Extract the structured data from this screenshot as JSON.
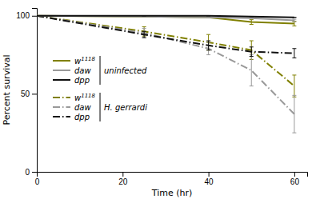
{
  "chart_data": {
    "type": "line",
    "xlabel": "Time (hr)",
    "ylabel": "Percent survival",
    "xlim": [
      0,
      63
    ],
    "ylim": [
      0,
      105
    ],
    "xticks": [
      0,
      20,
      40,
      60
    ],
    "yticks": [
      0,
      50,
      100
    ],
    "grid": false,
    "legend": "upper left",
    "x": [
      0,
      25,
      40,
      50,
      60
    ],
    "series": [
      {
        "name": "w1118",
        "color": "#808000",
        "line_style": "solid",
        "values": [
          100,
          99.5,
          99,
          96,
          95
        ],
        "errors": [
          0,
          0,
          0,
          1.5,
          1.5
        ]
      },
      {
        "name": "daw",
        "color": "#999999",
        "line_style": "solid",
        "values": [
          100,
          99.5,
          99,
          98.5,
          97
        ],
        "errors": [
          0,
          0,
          0,
          0,
          0.8
        ]
      },
      {
        "name": "dpp",
        "color": "#111111",
        "line_style": "solid",
        "values": [
          100,
          100,
          100,
          99.5,
          99
        ],
        "errors": [
          0,
          0,
          0,
          0,
          0
        ]
      },
      {
        "name": "w1118",
        "color": "#808000",
        "line_style": "dashdot",
        "values": [
          100,
          90,
          83,
          78,
          55
        ],
        "errors": [
          0,
          3,
          5,
          6,
          7
        ]
      },
      {
        "name": "daw",
        "color": "#999999",
        "line_style": "dashdot",
        "values": [
          100,
          89,
          79,
          65,
          37
        ],
        "errors": [
          0,
          3,
          4,
          10,
          12
        ]
      },
      {
        "name": "dpp",
        "color": "#111111",
        "line_style": "dashdot",
        "values": [
          100,
          88,
          81,
          77,
          76
        ],
        "errors": [
          0,
          2,
          3,
          3,
          3
        ]
      }
    ],
    "annotations": [
      "uninfected",
      "H. gerrardi"
    ]
  }
}
